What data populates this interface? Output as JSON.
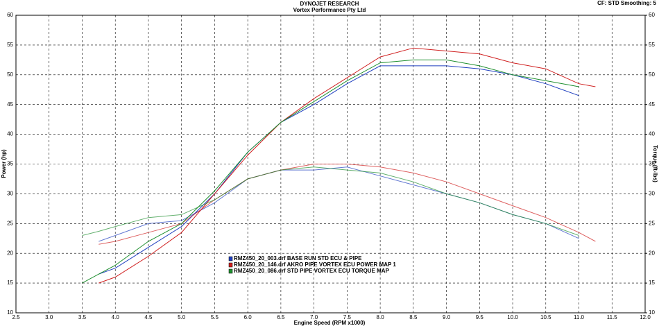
{
  "chart_data": {
    "type": "line",
    "title": "DYNOJET RESEARCH",
    "subtitle": "Vortex Performance Pty Ltd",
    "annotation": "CF: STD  Smoothing: 5",
    "x_label": "Engine Speed (RPM x1000)",
    "y_label": "Power (hp)",
    "y2_label": "Torque (ft-lbs)",
    "x": [
      3.5,
      3.75,
      4,
      4.5,
      5,
      5.5,
      6,
      6.5,
      7,
      7.5,
      8,
      8.5,
      9,
      9.5,
      10,
      10.5,
      11,
      11.25
    ],
    "series": [
      {
        "name": "RMZ450_20_003.drf BASE RUN STD ECU & PIPE",
        "color": "#1f3fbf",
        "power": [
          null,
          16.5,
          17.5,
          21,
          24.5,
          30,
          37,
          42,
          45,
          48.5,
          51.5,
          51.5,
          51.5,
          51,
          50,
          48.5,
          46.5,
          null
        ],
        "torque": [
          null,
          22,
          23,
          25,
          25.5,
          28.5,
          32.5,
          34,
          34,
          34.5,
          33,
          31.5,
          30,
          28.5,
          26.5,
          25,
          22.5,
          null
        ]
      },
      {
        "name": "RMZ450_20_146.drf AKRO PIPE VORTEX ECU POWER MAP 1",
        "color": "#d02020",
        "power": [
          null,
          15,
          16,
          19.5,
          23.5,
          30,
          36.5,
          42,
          46,
          49.5,
          53,
          54.5,
          54,
          53.5,
          52,
          51,
          48.5,
          48
        ],
        "torque": [
          null,
          21.5,
          22,
          23.5,
          25,
          29,
          32.5,
          34,
          35,
          35,
          34.5,
          33.5,
          32,
          30,
          28,
          26,
          23.5,
          22
        ]
      },
      {
        "name": "RMZ450_20_086.drf STD PIPE VORTEX ECU TORQUE MAP",
        "color": "#1f8f2f",
        "power": [
          15,
          16.5,
          18,
          22,
          25,
          30.5,
          37,
          42,
          45.5,
          49,
          52,
          52.5,
          52.5,
          51.5,
          50,
          49,
          48,
          null
        ],
        "torque": [
          23,
          23.7,
          24.5,
          26,
          26.5,
          29,
          32.5,
          34,
          34.5,
          34,
          33.5,
          32,
          30,
          28.5,
          26.5,
          25,
          23,
          null
        ]
      }
    ],
    "xlim": [
      2.5,
      12.0
    ],
    "xticks": [
      2.5,
      {
        "value": 3,
        "label": "3.0"
      },
      3.5,
      {
        "value": 4,
        "label": "4.0"
      },
      4.5,
      {
        "value": 5,
        "label": "5.0"
      },
      5.5,
      {
        "value": 6,
        "label": "6.0"
      },
      6.5,
      {
        "value": 7,
        "label": "7.0"
      },
      7.5,
      {
        "value": 8,
        "label": "8.0"
      },
      8.5,
      {
        "value": 9,
        "label": "9.0"
      },
      9.5,
      {
        "value": 10,
        "label": "10.0"
      },
      10.5,
      {
        "value": 11,
        "label": "11.0"
      },
      11.5,
      {
        "value": 12,
        "label": "12.0"
      }
    ],
    "ylim": [
      10,
      60
    ],
    "yticks": [
      10,
      15,
      20,
      25,
      30,
      35,
      40,
      45,
      50,
      55,
      60
    ],
    "y2lim": [
      10,
      60
    ],
    "y2ticks": [
      10,
      15,
      20,
      25,
      30,
      35,
      40,
      45,
      50,
      55,
      60
    ],
    "grid": true
  }
}
